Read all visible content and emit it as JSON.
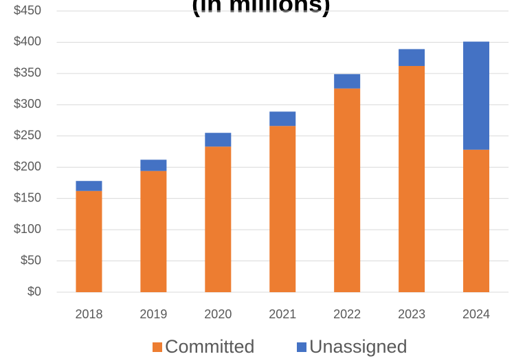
{
  "chart_data": {
    "type": "stacked_bar",
    "title": "(in millions)",
    "categories": [
      "2018",
      "2019",
      "2020",
      "2021",
      "2022",
      "2023",
      "2024"
    ],
    "series": [
      {
        "name": "Committed",
        "color": "#ed7d31",
        "values": [
          162,
          194,
          233,
          266,
          326,
          362,
          228
        ]
      },
      {
        "name": "Unassigned",
        "color": "#4472c4",
        "values": [
          16,
          18,
          22,
          23,
          23,
          27,
          173
        ]
      }
    ],
    "ylim": [
      0,
      450
    ],
    "yticks": [
      {
        "value": 0,
        "label": "$0"
      },
      {
        "value": 50,
        "label": "$50"
      },
      {
        "value": 100,
        "label": "$100"
      },
      {
        "value": 150,
        "label": "$150"
      },
      {
        "value": 200,
        "label": "$200"
      },
      {
        "value": 250,
        "label": "$250"
      },
      {
        "value": 300,
        "label": "$300"
      },
      {
        "value": 350,
        "label": "$350"
      },
      {
        "value": 400,
        "label": "$400"
      },
      {
        "value": 450,
        "label": "$450"
      }
    ],
    "grid": true,
    "legend": "bottom"
  }
}
